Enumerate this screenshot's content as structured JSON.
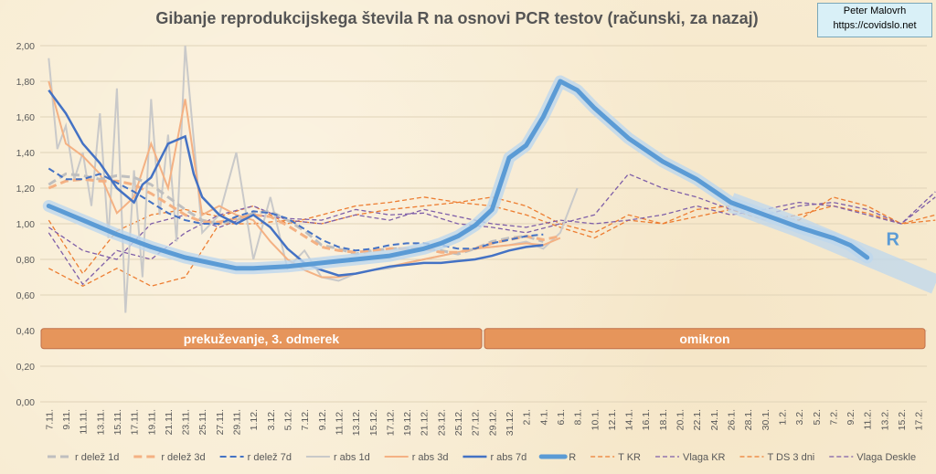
{
  "title": "Gibanje reprodukcijskega števila R na osnovi PCR testov (računski, za nazaj)",
  "credit": {
    "line1": "Peter Malovrh",
    "line2": "https://covidslo.net"
  },
  "colors": {
    "grid": "#e0d3b8",
    "band_fill": "#e6955b",
    "band_stroke": "#c0704a",
    "r_delez": "#bfbfbf",
    "r_delez3": "#f4b183",
    "r_delez7": "#4472c4",
    "r_abs1": "#c9c9c9",
    "r_abs3": "#f4b183",
    "r_abs7": "#4472c4",
    "R": "#5b9bd5",
    "R_glow": "#bdd7ee",
    "T": "#ed7d31",
    "vlaga": "#7f5fa8"
  },
  "chart_data": {
    "type": "line",
    "ylim": [
      0,
      2
    ],
    "y_ticks": [
      "0,00",
      "0,20",
      "0,40",
      "0,60",
      "0,80",
      "1,00",
      "1,20",
      "1,40",
      "1,60",
      "1,80",
      "2,00"
    ],
    "x_ticks": [
      "7.11.",
      "9.11.",
      "11.11.",
      "13.11.",
      "15.11.",
      "17.11.",
      "19.11.",
      "21.11.",
      "23.11.",
      "25.11.",
      "27.11.",
      "29.11.",
      "1.12.",
      "3.12.",
      "5.12.",
      "7.12.",
      "9.12.",
      "11.12.",
      "13.12.",
      "15.12.",
      "17.12.",
      "19.12.",
      "21.12.",
      "23.12.",
      "25.12.",
      "27.12.",
      "29.12.",
      "31.12.",
      "2.1.",
      "4.1.",
      "6.1.",
      "8.1.",
      "10.1.",
      "12.1.",
      "14.1.",
      "16.1.",
      "18.1.",
      "20.1.",
      "22.1.",
      "24.1.",
      "26.1.",
      "28.1.",
      "30.1.",
      "1.2.",
      "3.2.",
      "5.2.",
      "7.2.",
      "9.2.",
      "11.2.",
      "13.2.",
      "15.2.",
      "17.2."
    ],
    "bands": [
      {
        "label": "prekuževanje, 3. odmerek",
        "from": 0,
        "to": 26,
        "y": 0.355
      },
      {
        "label": "omikron",
        "from": 26,
        "to": 52,
        "y": 0.355
      }
    ],
    "R_label": "R",
    "series": [
      {
        "name": "r delež 1d",
        "style": "dash-thick",
        "color_key": "r_delez",
        "x": [
          0,
          1,
          2,
          3,
          4,
          5,
          6,
          7,
          8,
          9,
          10,
          11,
          12,
          13,
          14,
          15,
          16,
          17,
          18,
          19,
          20,
          21,
          22,
          23,
          24,
          25,
          26,
          27,
          28,
          29
        ],
        "values": [
          1.22,
          1.28,
          1.27,
          1.25,
          1.27,
          1.26,
          1.22,
          1.15,
          1.08,
          1.02,
          1.0,
          1.02,
          1.06,
          1.07,
          1.02,
          0.96,
          0.88,
          0.86,
          0.83,
          0.85,
          0.86,
          0.86,
          0.86,
          0.85,
          0.83,
          0.86,
          0.9,
          0.92,
          0.93,
          0.9
        ]
      },
      {
        "name": "r delež 3d",
        "style": "dash-thick",
        "color_key": "r_delez3",
        "x": [
          0,
          1,
          2,
          3,
          4,
          5,
          6,
          7,
          8,
          9,
          10,
          11,
          12,
          13,
          14,
          15,
          16,
          17,
          18,
          19,
          20,
          21,
          22,
          23,
          24,
          25,
          26,
          27,
          28,
          29,
          30
        ],
        "values": [
          1.2,
          1.24,
          1.25,
          1.24,
          1.24,
          1.22,
          1.17,
          1.11,
          1.05,
          1.01,
          1.01,
          1.03,
          1.05,
          1.04,
          0.99,
          0.93,
          0.87,
          0.85,
          0.84,
          0.85,
          0.86,
          0.86,
          0.86,
          0.84,
          0.84,
          0.86,
          0.89,
          0.91,
          0.93,
          0.91,
          0.93
        ]
      },
      {
        "name": "r delež 7d",
        "style": "dash",
        "color_key": "r_delez7",
        "x": [
          0,
          1,
          2,
          3,
          4,
          5,
          6,
          7,
          8,
          9,
          10,
          11,
          12,
          13,
          14,
          15,
          16,
          17,
          18,
          19,
          20,
          21,
          22,
          23,
          24,
          25,
          26,
          27,
          28,
          29
        ],
        "values": [
          1.31,
          1.25,
          1.25,
          1.28,
          1.23,
          1.18,
          1.12,
          1.06,
          1.02,
          1.0,
          1.0,
          1.04,
          1.07,
          1.06,
          1.03,
          0.97,
          0.91,
          0.87,
          0.85,
          0.86,
          0.88,
          0.89,
          0.89,
          0.88,
          0.86,
          0.86,
          0.89,
          0.91,
          0.93,
          0.94
        ]
      },
      {
        "name": "r abs 1d",
        "style": "solid-thin",
        "color_key": "r_abs1",
        "x": [
          0,
          0.5,
          1,
          1.5,
          2,
          2.5,
          3,
          3.5,
          4,
          4.5,
          5,
          5.5,
          6,
          6.5,
          7,
          7.5,
          8,
          9,
          10,
          11,
          12,
          13,
          14,
          15,
          16,
          17,
          18,
          19,
          20,
          21,
          22,
          23,
          24,
          25,
          26,
          27,
          28,
          29,
          30,
          31
        ],
        "values": [
          1.93,
          1.42,
          1.55,
          1.25,
          1.4,
          1.1,
          1.62,
          0.92,
          1.76,
          0.5,
          1.3,
          0.7,
          1.7,
          1.05,
          1.5,
          0.9,
          2.0,
          0.95,
          1.05,
          1.4,
          0.8,
          1.15,
          0.75,
          0.85,
          0.7,
          0.68,
          0.72,
          0.74,
          0.75,
          0.78,
          0.8,
          0.82,
          0.84,
          0.86,
          0.87,
          0.88,
          0.9,
          0.86,
          0.95,
          1.2
        ]
      },
      {
        "name": "r abs 3d",
        "style": "solid-thin",
        "color_key": "r_abs3",
        "x": [
          0,
          1,
          2,
          3,
          4,
          5,
          6,
          7,
          8,
          9,
          10,
          11,
          12,
          13,
          14,
          15,
          16,
          17,
          18,
          19,
          20,
          21,
          22,
          23,
          24,
          25,
          26,
          27,
          28,
          29,
          30
        ],
        "values": [
          1.8,
          1.45,
          1.38,
          1.28,
          1.06,
          1.15,
          1.45,
          1.2,
          1.7,
          1.05,
          1.1,
          1.05,
          1.02,
          0.9,
          0.8,
          0.74,
          0.7,
          0.7,
          0.72,
          0.74,
          0.76,
          0.78,
          0.8,
          0.82,
          0.84,
          0.86,
          0.87,
          0.88,
          0.89,
          0.88,
          0.92
        ]
      },
      {
        "name": "r abs 7d",
        "style": "solid-mid",
        "color_key": "r_abs7",
        "x": [
          0,
          1,
          2,
          3,
          4,
          5,
          5.5,
          6,
          7,
          8,
          8.5,
          9,
          10,
          11,
          12,
          13,
          14,
          15,
          16,
          17,
          18,
          19,
          20,
          21,
          22,
          23,
          24,
          25,
          26,
          27,
          28,
          29
        ],
        "values": [
          1.75,
          1.62,
          1.45,
          1.34,
          1.2,
          1.12,
          1.22,
          1.26,
          1.45,
          1.49,
          1.28,
          1.15,
          1.05,
          1.0,
          1.05,
          0.98,
          0.86,
          0.78,
          0.74,
          0.71,
          0.72,
          0.74,
          0.76,
          0.77,
          0.78,
          0.78,
          0.79,
          0.8,
          0.82,
          0.85,
          0.87,
          0.88
        ]
      },
      {
        "name": "R",
        "style": "R",
        "color_key": "R",
        "x": [
          0,
          2,
          4,
          6,
          8,
          10,
          11,
          12,
          14,
          16,
          17,
          18,
          20,
          22,
          23,
          24,
          25,
          26,
          27,
          28,
          29,
          30,
          31,
          32,
          34,
          36,
          38,
          40,
          42,
          44,
          46,
          47,
          48
        ],
        "values": [
          1.1,
          1.02,
          0.94,
          0.87,
          0.81,
          0.77,
          0.75,
          0.75,
          0.76,
          0.78,
          0.79,
          0.8,
          0.82,
          0.86,
          0.89,
          0.93,
          0.99,
          1.08,
          1.37,
          1.44,
          1.6,
          1.8,
          1.75,
          1.65,
          1.48,
          1.35,
          1.25,
          1.12,
          1.05,
          0.98,
          0.92,
          0.88,
          0.81
        ]
      },
      {
        "name": "R band",
        "style": "R-band",
        "color_key": "R_glow",
        "x": [
          40,
          42,
          44,
          46,
          48,
          50,
          52
        ],
        "values": [
          1.12,
          1.05,
          0.98,
          0.9,
          0.82,
          0.74,
          0.66
        ]
      },
      {
        "name": "T KR",
        "style": "dash-thin",
        "color_key": "T",
        "x": [
          0,
          2,
          4,
          6,
          8,
          10,
          12,
          14,
          16,
          18,
          20,
          22,
          24,
          26,
          28,
          30,
          32,
          34,
          36,
          38,
          40,
          42,
          44,
          46,
          48,
          50,
          52
        ],
        "values": [
          1.02,
          0.72,
          0.96,
          1.05,
          1.08,
          1.04,
          1.1,
          1.0,
          1.05,
          1.1,
          1.12,
          1.15,
          1.12,
          1.1,
          1.05,
          0.98,
          0.92,
          1.02,
          1.0,
          1.04,
          1.08,
          1.02,
          1.05,
          1.1,
          1.06,
          1.0,
          1.02
        ]
      },
      {
        "name": "Vlaga KR",
        "style": "dash-thin",
        "color_key": "vlaga",
        "x": [
          0,
          2,
          4,
          6,
          8,
          10,
          12,
          14,
          16,
          18,
          20,
          22,
          24,
          26,
          28,
          30,
          32,
          34,
          36,
          38,
          40,
          42,
          44,
          46,
          48,
          50,
          52
        ],
        "values": [
          0.98,
          0.85,
          0.8,
          1.0,
          1.05,
          0.98,
          1.05,
          1.03,
          1.02,
          1.08,
          1.05,
          1.06,
          1.0,
          0.98,
          0.95,
          1.0,
          1.05,
          1.28,
          1.2,
          1.15,
          1.08,
          1.05,
          1.1,
          1.12,
          1.08,
          1.0,
          1.18
        ]
      },
      {
        "name": "T DS 3 dni",
        "style": "dash-thin",
        "color_key": "T",
        "x": [
          0,
          2,
          4,
          6,
          8,
          10,
          12,
          14,
          16,
          18,
          20,
          22,
          24,
          26,
          28,
          30,
          32,
          34,
          36,
          38,
          40,
          42,
          44,
          46,
          48,
          50,
          52
        ],
        "values": [
          0.75,
          0.65,
          0.75,
          0.65,
          0.7,
          1.0,
          1.0,
          1.02,
          1.0,
          1.05,
          1.08,
          1.1,
          1.12,
          1.15,
          1.1,
          1.0,
          0.95,
          1.05,
          1.0,
          1.08,
          1.1,
          1.05,
          1.02,
          1.15,
          1.1,
          1.0,
          1.05
        ]
      },
      {
        "name": "Vlaga Deskle",
        "style": "dash-thin",
        "color_key": "vlaga",
        "x": [
          0,
          2,
          4,
          6,
          8,
          10,
          12,
          14,
          16,
          18,
          20,
          22,
          24,
          26,
          28,
          30,
          32,
          34,
          36,
          38,
          40,
          42,
          44,
          46,
          48,
          50,
          52
        ],
        "values": [
          0.95,
          0.66,
          0.85,
          0.8,
          0.95,
          1.05,
          1.1,
          1.02,
          1.0,
          1.05,
          1.02,
          1.08,
          1.04,
          1.0,
          0.98,
          1.02,
          1.0,
          1.02,
          1.05,
          1.1,
          1.05,
          1.08,
          1.12,
          1.1,
          1.05,
          1.0,
          1.15
        ]
      }
    ],
    "legend": [
      {
        "name": "r delež 1d",
        "style": "dash-thick",
        "color_key": "r_delez"
      },
      {
        "name": "r delež 3d",
        "style": "dash-thick",
        "color_key": "r_delez3"
      },
      {
        "name": "r delež 7d",
        "style": "dash",
        "color_key": "r_delez7"
      },
      {
        "name": "r abs 1d",
        "style": "solid-thin",
        "color_key": "r_abs1"
      },
      {
        "name": "r abs 3d",
        "style": "solid-thin",
        "color_key": "r_abs3"
      },
      {
        "name": "r abs 7d",
        "style": "solid-mid",
        "color_key": "r_abs7"
      },
      {
        "name": "R",
        "style": "R",
        "color_key": "R"
      },
      {
        "name": "T KR",
        "style": "dash-thin",
        "color_key": "T"
      },
      {
        "name": "Vlaga KR",
        "style": "dash-thin",
        "color_key": "vlaga"
      },
      {
        "name": "T DS 3 dni",
        "style": "dash-thin",
        "color_key": "T"
      },
      {
        "name": "Vlaga Deskle",
        "style": "dash-thin",
        "color_key": "vlaga"
      }
    ]
  }
}
